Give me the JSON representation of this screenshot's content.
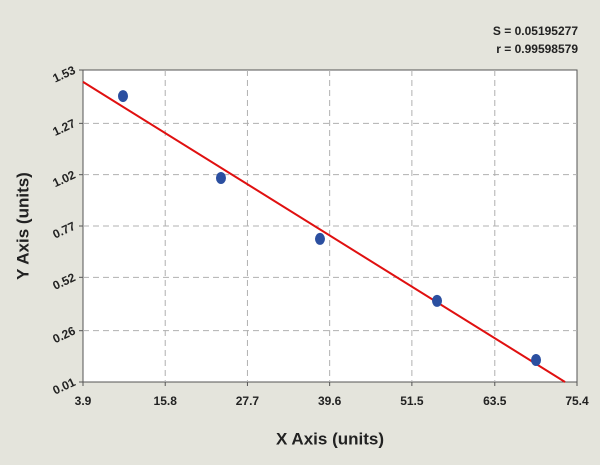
{
  "chart_data": {
    "type": "scatter",
    "x_label": "X Axis (units)",
    "y_label": "Y Axis (units)",
    "annotations": [
      "S = 0.05195277",
      "r = 0.99598579"
    ],
    "x": [
      9.69,
      23.87,
      38.2,
      55.14,
      69.47
    ],
    "values": [
      1.403,
      1.004,
      0.707,
      0.405,
      0.117
    ],
    "color": "#2b4fa0",
    "fit": {
      "x": [
        3.9,
        73.67
      ],
      "y": [
        1.472,
        0.01
      ],
      "color": "#e01010"
    },
    "xlim": [
      3.9,
      75.4
    ],
    "xticks": [
      3.9,
      15.8,
      27.7,
      39.6,
      51.5,
      63.5,
      75.4
    ],
    "ylim": [
      0.01,
      1.53
    ],
    "yticks": [
      0.01,
      0.26,
      0.52,
      0.77,
      1.02,
      1.27,
      1.53
    ],
    "grid": true
  }
}
